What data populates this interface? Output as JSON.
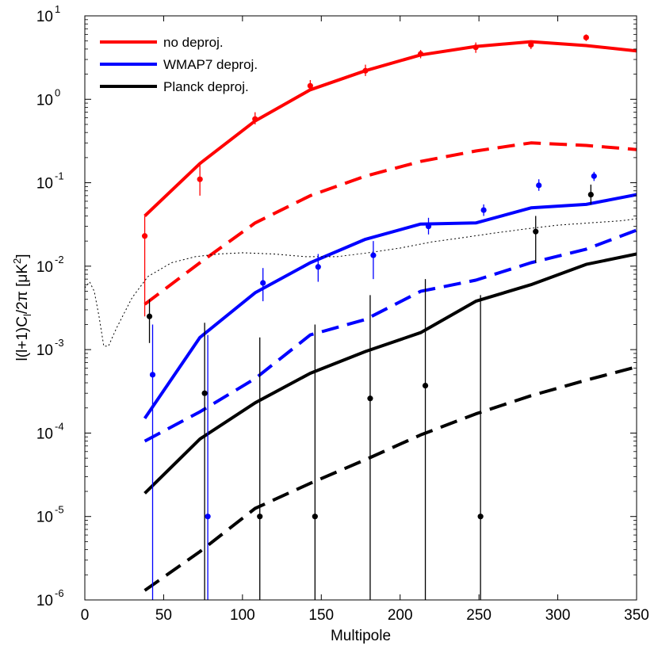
{
  "chart_data": {
    "type": "line",
    "title": "",
    "xlabel": "Multipole",
    "ylabel": "l(l+1)C_l/2π [μK²]",
    "ylabel_parts": {
      "a": "l(l+1)C",
      "sub": "l",
      "b": "/2π [μK",
      "sup": "2",
      "c": "]"
    },
    "xlim": [
      0,
      350
    ],
    "ylim": [
      1e-06,
      10
    ],
    "yscale": "log",
    "grid": false,
    "legend_position": "top-left",
    "x_ticks": [
      0,
      50,
      100,
      150,
      200,
      250,
      300,
      350
    ],
    "x_tick_labels": [
      "0",
      "50",
      "100",
      "150",
      "200",
      "250",
      "300",
      "350"
    ],
    "y_ticks": [
      1e-06,
      1e-05,
      0.0001,
      0.001,
      0.01,
      0.1,
      1,
      10
    ],
    "y_tick_labels": [
      {
        "base": "10",
        "exp": "-6"
      },
      {
        "base": "10",
        "exp": "-5"
      },
      {
        "base": "10",
        "exp": "-4"
      },
      {
        "base": "10",
        "exp": "-3"
      },
      {
        "base": "10",
        "exp": "-2"
      },
      {
        "base": "10",
        "exp": "-1"
      },
      {
        "base": "10",
        "exp": "0"
      },
      {
        "base": "10",
        "exp": "1"
      }
    ],
    "series": [
      {
        "name": "no deproj.",
        "color": "#ff0000",
        "style": "solid",
        "width": 4,
        "x": [
          38,
          73,
          108,
          143,
          178,
          213,
          248,
          283,
          318,
          350
        ],
        "y": [
          0.04,
          0.17,
          0.55,
          1.3,
          2.2,
          3.4,
          4.3,
          4.9,
          4.4,
          3.8
        ]
      },
      {
        "color": "#ff0000",
        "style": "dashed",
        "width": 4,
        "x": [
          38,
          73,
          108,
          143,
          178,
          213,
          248,
          283,
          318,
          350
        ],
        "y": [
          0.0035,
          0.011,
          0.033,
          0.07,
          0.12,
          0.18,
          0.24,
          0.3,
          0.28,
          0.25
        ]
      },
      {
        "name": "WMAP7 deproj.",
        "color": "#0000ff",
        "style": "solid",
        "width": 4,
        "x": [
          38,
          73,
          108,
          143,
          178,
          213,
          248,
          283,
          318,
          350
        ],
        "y": [
          0.00015,
          0.0014,
          0.0048,
          0.011,
          0.021,
          0.032,
          0.033,
          0.05,
          0.055,
          0.072
        ]
      },
      {
        "color": "#0000ff",
        "style": "dashed",
        "width": 4,
        "x": [
          38,
          73,
          108,
          143,
          178,
          213,
          248,
          283,
          318,
          350
        ],
        "y": [
          8e-05,
          0.00018,
          0.00045,
          0.0015,
          0.0023,
          0.005,
          0.0068,
          0.011,
          0.016,
          0.027
        ]
      },
      {
        "name": "Planck deproj.",
        "color": "#000000",
        "style": "solid",
        "width": 4,
        "x": [
          38,
          73,
          108,
          143,
          178,
          213,
          248,
          283,
          318,
          350
        ],
        "y": [
          1.9e-05,
          8.5e-05,
          0.00023,
          0.00052,
          0.00095,
          0.0016,
          0.0038,
          0.006,
          0.0105,
          0.014
        ]
      },
      {
        "color": "#000000",
        "style": "dashed",
        "width": 4,
        "x": [
          38,
          73,
          108,
          143,
          178,
          213,
          248,
          283,
          318,
          350
        ],
        "y": [
          1.3e-06,
          3.8e-06,
          1.25e-05,
          2.5e-05,
          4.8e-05,
          9.5e-05,
          0.00017,
          0.00028,
          0.00043,
          0.00062
        ]
      },
      {
        "color": "#000000",
        "style": "dotted",
        "width": 1,
        "x": [
          0,
          3,
          6,
          9,
          12,
          15,
          20,
          30,
          40,
          55,
          70,
          85,
          100,
          120,
          140,
          160,
          180,
          200,
          220,
          240,
          260,
          280,
          300,
          320,
          340,
          350
        ],
        "y": [
          0.0055,
          0.0065,
          0.005,
          0.0025,
          0.0011,
          0.0011,
          0.0018,
          0.0042,
          0.0075,
          0.011,
          0.013,
          0.014,
          0.0145,
          0.014,
          0.013,
          0.013,
          0.0145,
          0.0165,
          0.0195,
          0.022,
          0.025,
          0.028,
          0.031,
          0.033,
          0.035,
          0.037
        ]
      }
    ],
    "error_points": [
      {
        "color": "#ff0000",
        "x": [
          38,
          73,
          108,
          143,
          178,
          213,
          248,
          283,
          318
        ],
        "y": [
          0.023,
          0.11,
          0.58,
          1.45,
          2.2,
          3.5,
          4.2,
          4.5,
          5.5
        ],
        "err_low": [
          0.0025,
          0.07,
          0.5,
          1.3,
          1.9,
          3.1,
          3.6,
          4.0,
          5.0
        ],
        "err_high": [
          0.04,
          0.17,
          0.7,
          1.7,
          2.6,
          3.9,
          4.8,
          5.0,
          6.0
        ]
      },
      {
        "color": "#0000ff",
        "x": [
          43,
          78,
          113,
          148,
          183,
          218,
          253,
          288,
          323
        ],
        "y": [
          0.0005,
          1e-05,
          0.0063,
          0.0098,
          0.0135,
          0.03,
          0.047,
          0.093,
          0.12
        ],
        "err_low": [
          1e-06,
          1e-06,
          0.0038,
          0.0065,
          0.007,
          0.024,
          0.04,
          0.08,
          0.105
        ],
        "err_high": [
          0.002,
          0.0015,
          0.0095,
          0.014,
          0.02,
          0.038,
          0.055,
          0.11,
          0.135
        ]
      },
      {
        "color": "#000000",
        "x": [
          41,
          76,
          111,
          146,
          181,
          216,
          251,
          286,
          321
        ],
        "y": [
          0.0025,
          0.0003,
          1e-05,
          1e-05,
          0.00026,
          0.00037,
          1e-05,
          0.026,
          0.072
        ],
        "err_low": [
          0.0012,
          1e-06,
          1e-06,
          1e-06,
          1e-06,
          1e-06,
          1e-06,
          0.011,
          0.055
        ],
        "err_high": [
          0.004,
          0.0021,
          0.0014,
          0.002,
          0.0045,
          0.007,
          0.0045,
          0.04,
          0.095
        ]
      }
    ]
  }
}
